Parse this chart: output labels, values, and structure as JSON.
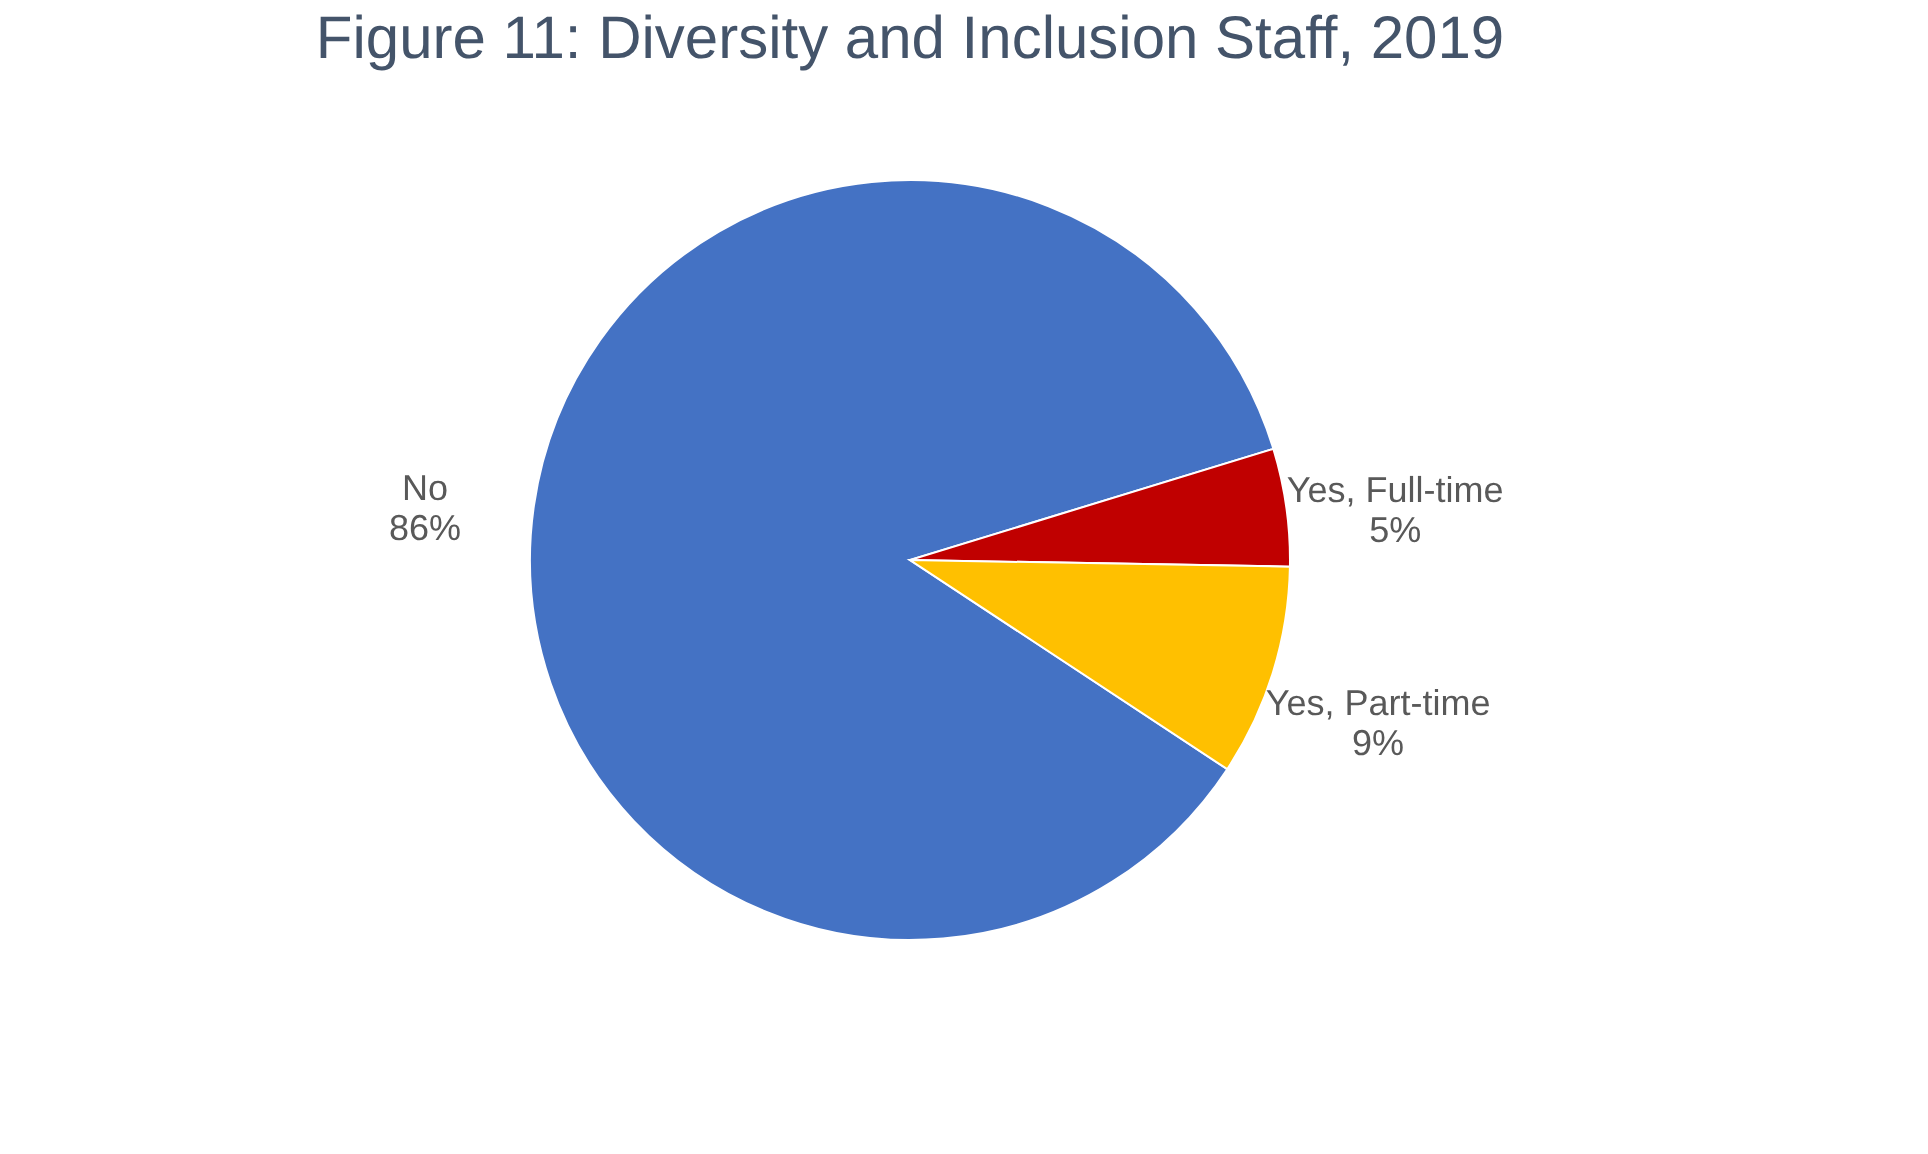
{
  "chart_data": {
    "type": "pie",
    "title": "Figure 11: Diversity and Inclusion Staff, 2019",
    "categories": [
      "No",
      "Yes, Full-time",
      "Yes, Part-time"
    ],
    "values": [
      86,
      5,
      9
    ],
    "value_labels": [
      "86%",
      "5%",
      "9%"
    ],
    "colors": [
      "#4472c4",
      "#c00000",
      "#ffc000"
    ],
    "legend": false
  }
}
